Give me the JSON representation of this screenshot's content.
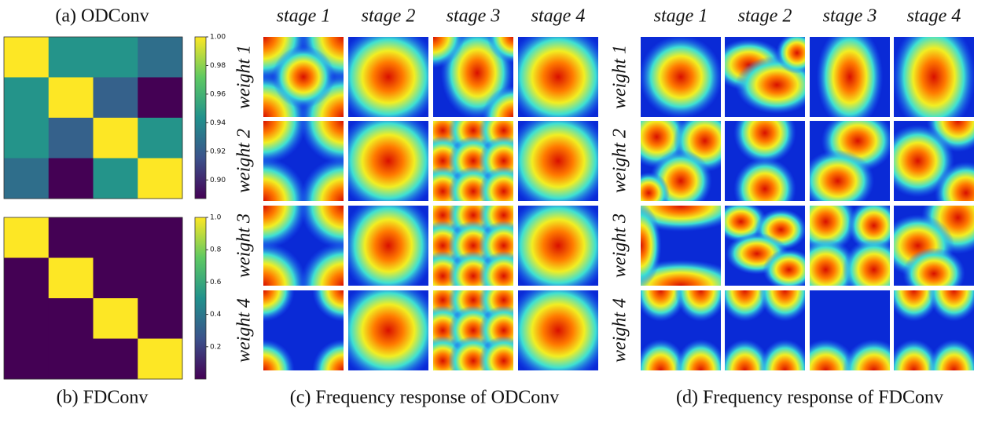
{
  "panel_a": {
    "title": "(a) ODConv",
    "matrix": [
      [
        1.0,
        0.945,
        0.945,
        0.928
      ],
      [
        0.945,
        1.0,
        0.922,
        0.887
      ],
      [
        0.945,
        0.922,
        1.0,
        0.945
      ],
      [
        0.928,
        0.887,
        0.945,
        1.0
      ]
    ],
    "colorbar": {
      "lim": [
        0.887,
        1.0
      ],
      "ticks": [
        {
          "value": 1.0,
          "label": "1.00"
        },
        0.98,
        0.96,
        0.94,
        0.92,
        {
          "value": 0.9,
          "label": "0.90"
        }
      ]
    }
  },
  "panel_b": {
    "title": "(b) FDConv",
    "matrix": [
      [
        1,
        0,
        0,
        0
      ],
      [
        0,
        1,
        0,
        0
      ],
      [
        0,
        0,
        1,
        0
      ],
      [
        0,
        0,
        0,
        1
      ]
    ],
    "colorbar": {
      "lim": [
        0,
        1
      ],
      "ticks": [
        {
          "value": 1,
          "label": "1.0"
        },
        0.8,
        0.6,
        0.4,
        0.2
      ]
    }
  },
  "panel_c": {
    "caption": "(c) Frequency response of ODConv",
    "stages": [
      "stage 1",
      "stage 2",
      "stage 3",
      "stage 4"
    ],
    "weights": [
      "weight 1",
      "weight 2",
      "weight 3",
      "weight 4"
    ]
  },
  "panel_d": {
    "caption": "(d) Frequency response of FDConv",
    "stages": [
      "stage 1",
      "stage 2",
      "stage 3",
      "stage 4"
    ],
    "weights": [
      "weight 1",
      "weight 2",
      "weight 3",
      "weight 4"
    ]
  }
}
